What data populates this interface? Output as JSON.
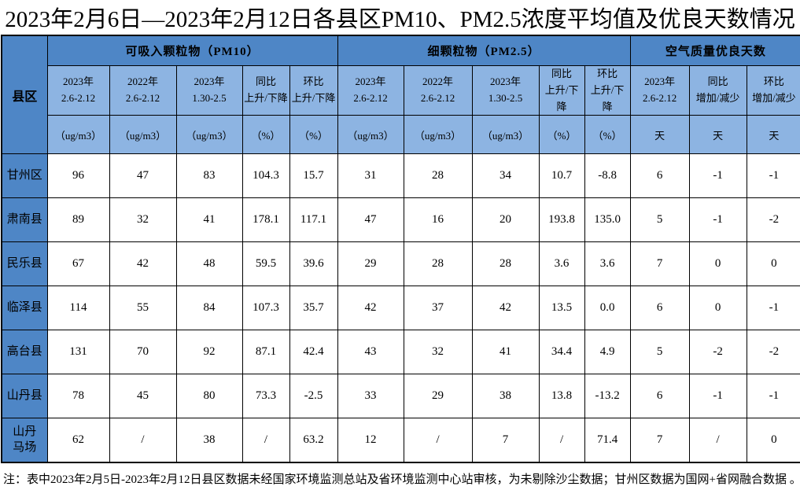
{
  "title": "2023年2月6日—2023年2月12日各县区PM10、PM2.5浓度平均值及优良天数情况",
  "table": {
    "corner_label": "县区",
    "groups": [
      {
        "label": "可吸入颗粒物（PM10）",
        "span": 5
      },
      {
        "label": "细颗粒物（PM2.5）",
        "span": 5
      },
      {
        "label": "空气质量优良天数",
        "span": 3
      }
    ],
    "columns": [
      {
        "header": "2023年\n2.6-2.12",
        "unit": "（ug/m3）"
      },
      {
        "header": "2022年\n2.6-2.12",
        "unit": "（ug/m3）"
      },
      {
        "header": "2023年\n1.30-2.5",
        "unit": "（ug/m3）"
      },
      {
        "header": "同比\n上升/下降",
        "unit": "（%）"
      },
      {
        "header": "环比\n上升/下降",
        "unit": "（%）"
      },
      {
        "header": "2023年\n2.6-2.12",
        "unit": "（ug/m3）"
      },
      {
        "header": "2022年\n2.6-2.12",
        "unit": "（ug/m3）"
      },
      {
        "header": "2023年\n1.30-2.5",
        "unit": "（ug/m3）"
      },
      {
        "header": "同比\n上升/下降",
        "unit": "（%）"
      },
      {
        "header": "环比\n上升/下降",
        "unit": "（%）"
      },
      {
        "header": "2023年\n2.6-2.12",
        "unit": "天"
      },
      {
        "header": "同比\n增加/减少",
        "unit": "天"
      },
      {
        "header": "环比\n增加/减少",
        "unit": "天"
      }
    ],
    "rows": [
      {
        "name": "甘州区",
        "values": [
          "96",
          "47",
          "83",
          "104.3",
          "15.7",
          "31",
          "28",
          "34",
          "10.7",
          "-8.8",
          "6",
          "-1",
          "-1"
        ]
      },
      {
        "name": "肃南县",
        "values": [
          "89",
          "32",
          "41",
          "178.1",
          "117.1",
          "47",
          "16",
          "20",
          "193.8",
          "135.0",
          "5",
          "-1",
          "-2"
        ]
      },
      {
        "name": "民乐县",
        "values": [
          "67",
          "42",
          "48",
          "59.5",
          "39.6",
          "29",
          "28",
          "28",
          "3.6",
          "3.6",
          "7",
          "0",
          "0"
        ]
      },
      {
        "name": "临泽县",
        "values": [
          "114",
          "55",
          "84",
          "107.3",
          "35.7",
          "42",
          "37",
          "42",
          "13.5",
          "0.0",
          "6",
          "0",
          "-1"
        ]
      },
      {
        "name": "高台县",
        "values": [
          "131",
          "70",
          "92",
          "87.1",
          "42.4",
          "43",
          "32",
          "41",
          "34.4",
          "4.9",
          "5",
          "-2",
          "-2"
        ]
      },
      {
        "name": "山丹县",
        "values": [
          "78",
          "45",
          "80",
          "73.3",
          "-2.5",
          "33",
          "29",
          "38",
          "13.8",
          "-13.2",
          "6",
          "-1",
          "-1"
        ]
      },
      {
        "name": "山丹\n马场",
        "values": [
          "62",
          "/",
          "38",
          "/",
          "63.2",
          "12",
          "/",
          "7",
          "/",
          "71.4",
          "7",
          "/",
          "0"
        ]
      }
    ]
  },
  "note": "注：表中2023年2月5日-2023年2月12日县区数据未经国家环境监测总站及省环境监测中心站审核，为未剔除沙尘数据；甘州区数据为国网+省网融合数据 。",
  "colors": {
    "header_dark_blue": "#4e86c6",
    "header_light_blue": "#8db4e2",
    "border": "#000000",
    "background": "#ffffff"
  },
  "chart_data": {
    "type": "table",
    "title": "2023年2月6日—2023年2月12日各县区PM10、PM2.5浓度平均值及优良天数情况",
    "row_header": "县区",
    "column_groups": [
      "可吸入颗粒物（PM10）",
      "细颗粒物（PM2.5）",
      "空气质量优良天数"
    ],
    "columns": [
      "PM10 2023年2.6-2.12（ug/m3）",
      "PM10 2022年2.6-2.12（ug/m3）",
      "PM10 2023年1.30-2.5（ug/m3）",
      "PM10 同比上升/下降（%）",
      "PM10 环比上升/下降（%）",
      "PM2.5 2023年2.6-2.12（ug/m3）",
      "PM2.5 2022年2.6-2.12（ug/m3）",
      "PM2.5 2023年1.30-2.5（ug/m3）",
      "PM2.5 同比上升/下降（%）",
      "PM2.5 环比上升/下降（%）",
      "优良天数 2023年2.6-2.12（天）",
      "优良天数 同比增加/减少（天）",
      "优良天数 环比增加/减少（天）"
    ],
    "rows": [
      [
        "甘州区",
        96,
        47,
        83,
        104.3,
        15.7,
        31,
        28,
        34,
        10.7,
        -8.8,
        6,
        -1,
        -1
      ],
      [
        "肃南县",
        89,
        32,
        41,
        178.1,
        117.1,
        47,
        16,
        20,
        193.8,
        135.0,
        5,
        -1,
        -2
      ],
      [
        "民乐县",
        67,
        42,
        48,
        59.5,
        39.6,
        29,
        28,
        28,
        3.6,
        3.6,
        7,
        0,
        0
      ],
      [
        "临泽县",
        114,
        55,
        84,
        107.3,
        35.7,
        42,
        37,
        42,
        13.5,
        0.0,
        6,
        0,
        -1
      ],
      [
        "高台县",
        131,
        70,
        92,
        87.1,
        42.4,
        43,
        32,
        41,
        34.4,
        4.9,
        5,
        -2,
        -2
      ],
      [
        "山丹县",
        78,
        45,
        80,
        73.3,
        -2.5,
        33,
        29,
        38,
        13.8,
        -13.2,
        6,
        -1,
        -1
      ],
      [
        "山丹马场",
        62,
        "/",
        38,
        "/",
        63.2,
        12,
        "/",
        7,
        "/",
        71.4,
        7,
        "/",
        0
      ]
    ]
  }
}
